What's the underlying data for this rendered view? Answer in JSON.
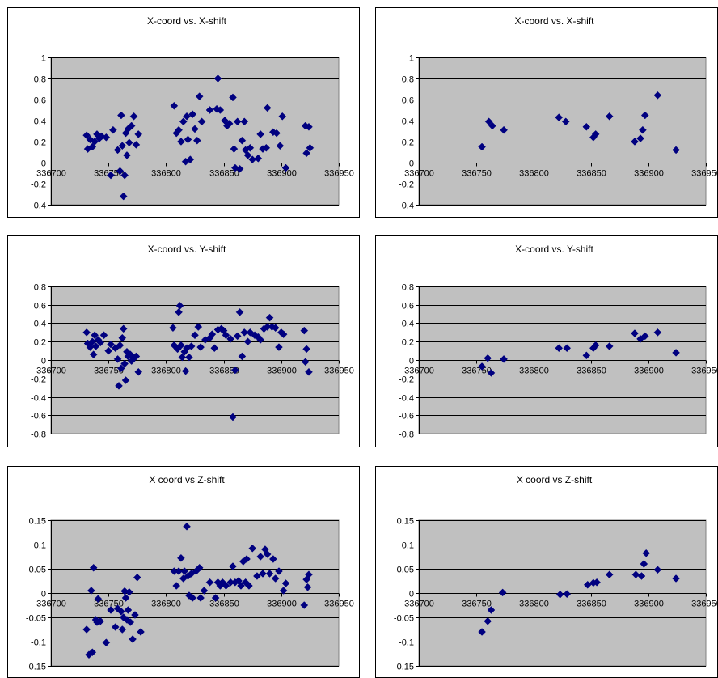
{
  "chart_data": [
    {
      "type": "scatter",
      "title": "X-coord vs. X-shift",
      "xlim": [
        336700,
        336950
      ],
      "ylim": [
        -0.4,
        1
      ],
      "xticks": [
        336700,
        336750,
        336800,
        336850,
        336900,
        336950
      ],
      "yticks": [
        -0.4,
        -0.2,
        0,
        0.2,
        0.4,
        0.6,
        0.8,
        1
      ],
      "xtick_labels": [
        "336700",
        "336750",
        "336800",
        "336850",
        "336900",
        "336950"
      ],
      "ytick_labels": [
        "-0.4",
        "-0.2",
        "0",
        "0.2",
        "0.4",
        "0.6",
        "0.8",
        "1"
      ],
      "grid": true,
      "marker_color": "#000080",
      "plot_bg": "#c0c0c0",
      "points": [
        [
          336731,
          0.26
        ],
        [
          336732,
          0.13
        ],
        [
          336734,
          0.22
        ],
        [
          336736,
          0.15
        ],
        [
          336738,
          0.2
        ],
        [
          336740,
          0.27
        ],
        [
          336742,
          0.23
        ],
        [
          336744,
          0.25
        ],
        [
          336748,
          0.24
        ],
        [
          336752,
          -0.12
        ],
        [
          336754,
          0.31
        ],
        [
          336758,
          0.12
        ],
        [
          336760,
          -0.08
        ],
        [
          336761,
          0.45
        ],
        [
          336762,
          0.16
        ],
        [
          336763,
          -0.32
        ],
        [
          336764,
          -0.12
        ],
        [
          336765,
          0.28
        ],
        [
          336766,
          0.07
        ],
        [
          336767,
          0.32
        ],
        [
          336768,
          0.19
        ],
        [
          336770,
          0.35
        ],
        [
          336772,
          0.44
        ],
        [
          336774,
          0.17
        ],
        [
          336776,
          0.27
        ],
        [
          336807,
          0.54
        ],
        [
          336809,
          0.28
        ],
        [
          336811,
          0.31
        ],
        [
          336813,
          0.2
        ],
        [
          336815,
          0.39
        ],
        [
          336817,
          0.01
        ],
        [
          336818,
          0.44
        ],
        [
          336819,
          0.22
        ],
        [
          336821,
          0.03
        ],
        [
          336823,
          0.46
        ],
        [
          336825,
          0.32
        ],
        [
          336827,
          0.21
        ],
        [
          336829,
          0.63
        ],
        [
          336831,
          0.39
        ],
        [
          336838,
          0.5
        ],
        [
          336844,
          0.51
        ],
        [
          336845,
          0.8
        ],
        [
          336847,
          0.5
        ],
        [
          336851,
          0.4
        ],
        [
          336853,
          0.35
        ],
        [
          336855,
          0.37
        ],
        [
          336858,
          0.62
        ],
        [
          336859,
          0.13
        ],
        [
          336860,
          -0.05
        ],
        [
          336862,
          0.39
        ],
        [
          336864,
          -0.06
        ],
        [
          336866,
          0.21
        ],
        [
          336868,
          0.39
        ],
        [
          336869,
          0.12
        ],
        [
          336871,
          0.07
        ],
        [
          336873,
          0.14
        ],
        [
          336875,
          0.03
        ],
        [
          336880,
          0.04
        ],
        [
          336882,
          0.27
        ],
        [
          336884,
          0.13
        ],
        [
          336887,
          0.14
        ],
        [
          336888,
          0.52
        ],
        [
          336893,
          0.29
        ],
        [
          336896,
          0.28
        ],
        [
          336899,
          0.16
        ],
        [
          336901,
          0.44
        ],
        [
          336904,
          -0.05
        ],
        [
          336921,
          0.35
        ],
        [
          336922,
          0.09
        ],
        [
          336924,
          0.34
        ],
        [
          336925,
          0.14
        ]
      ]
    },
    {
      "type": "scatter",
      "title": "X-coord vs. X-shift",
      "xlim": [
        336700,
        336950
      ],
      "ylim": [
        -0.4,
        1
      ],
      "xticks": [
        336700,
        336750,
        336800,
        336850,
        336900,
        336950
      ],
      "yticks": [
        -0.4,
        -0.2,
        0,
        0.2,
        0.4,
        0.6,
        0.8,
        1
      ],
      "xtick_labels": [
        "336700",
        "336750",
        "336800",
        "336850",
        "336900",
        "336950"
      ],
      "ytick_labels": [
        "-0.4",
        "-0.2",
        "0",
        "0.2",
        "0.4",
        "0.6",
        "0.8",
        "1"
      ],
      "grid": true,
      "marker_color": "#000080",
      "plot_bg": "#c0c0c0",
      "points": [
        [
          336755,
          0.15
        ],
        [
          336761,
          0.39
        ],
        [
          336764,
          0.35
        ],
        [
          336774,
          0.31
        ],
        [
          336822,
          0.43
        ],
        [
          336828,
          0.39
        ],
        [
          336846,
          0.34
        ],
        [
          336852,
          0.24
        ],
        [
          336854,
          0.27
        ],
        [
          336866,
          0.44
        ],
        [
          336888,
          0.2
        ],
        [
          336893,
          0.23
        ],
        [
          336895,
          0.31
        ],
        [
          336897,
          0.45
        ],
        [
          336908,
          0.64
        ],
        [
          336924,
          0.12
        ]
      ]
    },
    {
      "type": "scatter",
      "title": "X-coord vs. Y-shift",
      "xlim": [
        336700,
        336950
      ],
      "ylim": [
        -0.8,
        0.8
      ],
      "xticks": [
        336700,
        336750,
        336800,
        336850,
        336900,
        336950
      ],
      "yticks": [
        -0.8,
        -0.6,
        -0.4,
        -0.2,
        0,
        0.2,
        0.4,
        0.6,
        0.8
      ],
      "xtick_labels": [
        "336700",
        "336750",
        "336800",
        "336850",
        "336900",
        "336950"
      ],
      "ytick_labels": [
        "-0.8",
        "-0.6",
        "-0.4",
        "-0.2",
        "0",
        "0.2",
        "0.4",
        "0.6",
        "0.8"
      ],
      "grid": true,
      "marker_color": "#000080",
      "plot_bg": "#c0c0c0",
      "points": [
        [
          336731,
          0.3
        ],
        [
          336732,
          0.18
        ],
        [
          336734,
          0.14
        ],
        [
          336736,
          0.2
        ],
        [
          336737,
          0.06
        ],
        [
          336738,
          0.27
        ],
        [
          336739,
          0.15
        ],
        [
          336741,
          0.22
        ],
        [
          336743,
          0.19
        ],
        [
          336746,
          0.27
        ],
        [
          336750,
          0.1
        ],
        [
          336752,
          0.17
        ],
        [
          336756,
          0.13
        ],
        [
          336758,
          0.01
        ],
        [
          336759,
          -0.28
        ],
        [
          336760,
          0.16
        ],
        [
          336761,
          -0.09
        ],
        [
          336762,
          0.24
        ],
        [
          336763,
          0.34
        ],
        [
          336764,
          -0.04
        ],
        [
          336765,
          -0.22
        ],
        [
          336766,
          0.09
        ],
        [
          336767,
          0.04
        ],
        [
          336769,
          0.06
        ],
        [
          336770,
          -0.01
        ],
        [
          336772,
          0.02
        ],
        [
          336774,
          0.04
        ],
        [
          336776,
          -0.13
        ],
        [
          336806,
          0.35
        ],
        [
          336807,
          0.16
        ],
        [
          336810,
          0.12
        ],
        [
          336811,
          0.52
        ],
        [
          336812,
          0.59
        ],
        [
          336813,
          0.16
        ],
        [
          336814,
          0.03
        ],
        [
          336816,
          0.09
        ],
        [
          336817,
          -0.12
        ],
        [
          336818,
          0.13
        ],
        [
          336820,
          0.03
        ],
        [
          336822,
          0.15
        ],
        [
          336825,
          0.27
        ],
        [
          336828,
          0.36
        ],
        [
          336830,
          0.14
        ],
        [
          336834,
          0.22
        ],
        [
          336838,
          0.24
        ],
        [
          336840,
          0.28
        ],
        [
          336842,
          0.13
        ],
        [
          336845,
          0.33
        ],
        [
          336848,
          0.34
        ],
        [
          336850,
          0.32
        ],
        [
          336852,
          0.27
        ],
        [
          336856,
          0.23
        ],
        [
          336858,
          -0.62
        ],
        [
          336860,
          -0.11
        ],
        [
          336862,
          0.26
        ],
        [
          336864,
          0.52
        ],
        [
          336866,
          0.04
        ],
        [
          336868,
          0.3
        ],
        [
          336871,
          0.2
        ],
        [
          336873,
          0.3
        ],
        [
          336877,
          0.27
        ],
        [
          336880,
          0.25
        ],
        [
          336882,
          0.22
        ],
        [
          336885,
          0.34
        ],
        [
          336888,
          0.36
        ],
        [
          336890,
          0.46
        ],
        [
          336892,
          0.36
        ],
        [
          336895,
          0.35
        ],
        [
          336898,
          0.14
        ],
        [
          336900,
          0.3
        ],
        [
          336902,
          0.28
        ],
        [
          336920,
          0.32
        ],
        [
          336921,
          -0.02
        ],
        [
          336922,
          0.12
        ],
        [
          336924,
          -0.13
        ]
      ]
    },
    {
      "type": "scatter",
      "title": "X-coord vs. Y-shift",
      "xlim": [
        336700,
        336950
      ],
      "ylim": [
        -0.8,
        0.8
      ],
      "xticks": [
        336700,
        336750,
        336800,
        336850,
        336900,
        336950
      ],
      "yticks": [
        -0.8,
        -0.6,
        -0.4,
        -0.2,
        0,
        0.2,
        0.4,
        0.6,
        0.8
      ],
      "xtick_labels": [
        "336700",
        "336750",
        "336800",
        "336850",
        "336900",
        "336950"
      ],
      "ytick_labels": [
        "-0.8",
        "-0.6",
        "-0.4",
        "-0.2",
        "0",
        "0.2",
        "0.4",
        "0.6",
        "0.8"
      ],
      "grid": true,
      "marker_color": "#000080",
      "plot_bg": "#c0c0c0",
      "points": [
        [
          336755,
          -0.07
        ],
        [
          336760,
          0.02
        ],
        [
          336763,
          -0.14
        ],
        [
          336774,
          0.01
        ],
        [
          336822,
          0.13
        ],
        [
          336829,
          0.13
        ],
        [
          336846,
          0.05
        ],
        [
          336852,
          0.13
        ],
        [
          336854,
          0.16
        ],
        [
          336866,
          0.15
        ],
        [
          336888,
          0.29
        ],
        [
          336893,
          0.23
        ],
        [
          336897,
          0.26
        ],
        [
          336908,
          0.3
        ],
        [
          336924,
          0.08
        ]
      ]
    },
    {
      "type": "scatter",
      "title": "X coord vs Z-shift",
      "xlim": [
        336700,
        336950
      ],
      "ylim": [
        -0.15,
        0.15
      ],
      "xticks": [
        336700,
        336750,
        336800,
        336850,
        336900,
        336950
      ],
      "yticks": [
        -0.15,
        -0.1,
        -0.05,
        0,
        0.05,
        0.1,
        0.15
      ],
      "xtick_labels": [
        "336700",
        "336750",
        "336800",
        "336850",
        "336900",
        "336950"
      ],
      "ytick_labels": [
        "-0.15",
        "-0.1",
        "-0.05",
        "0",
        "0.05",
        "0.1",
        "0.15"
      ],
      "grid": true,
      "marker_color": "#000080",
      "plot_bg": "#c0c0c0",
      "points": [
        [
          336731,
          -0.075
        ],
        [
          336733,
          -0.127
        ],
        [
          336735,
          0.005
        ],
        [
          336736,
          -0.122
        ],
        [
          336737,
          0.052
        ],
        [
          336739,
          -0.055
        ],
        [
          336740,
          -0.06
        ],
        [
          336741,
          -0.012
        ],
        [
          336743,
          -0.058
        ],
        [
          336748,
          -0.102
        ],
        [
          336752,
          -0.035
        ],
        [
          336756,
          -0.07
        ],
        [
          336758,
          -0.032
        ],
        [
          336761,
          -0.038
        ],
        [
          336762,
          -0.075
        ],
        [
          336763,
          -0.05
        ],
        [
          336764,
          0.004
        ],
        [
          336765,
          -0.01
        ],
        [
          336766,
          -0.055
        ],
        [
          336767,
          -0.035
        ],
        [
          336768,
          0.002
        ],
        [
          336769,
          -0.06
        ],
        [
          336771,
          -0.095
        ],
        [
          336773,
          -0.045
        ],
        [
          336775,
          0.032
        ],
        [
          336778,
          -0.08
        ],
        [
          336807,
          0.045
        ],
        [
          336809,
          0.015
        ],
        [
          336811,
          0.045
        ],
        [
          336813,
          0.072
        ],
        [
          336815,
          0.03
        ],
        [
          336816,
          0.045
        ],
        [
          336818,
          0.137
        ],
        [
          336819,
          0.035
        ],
        [
          336820,
          -0.005
        ],
        [
          336822,
          0.04
        ],
        [
          336823,
          -0.01
        ],
        [
          336826,
          0.045
        ],
        [
          336829,
          0.052
        ],
        [
          336830,
          -0.01
        ],
        [
          336833,
          0.005
        ],
        [
          336838,
          0.022
        ],
        [
          336843,
          -0.01
        ],
        [
          336845,
          0.022
        ],
        [
          336847,
          0.015
        ],
        [
          336849,
          0.022
        ],
        [
          336852,
          0.015
        ],
        [
          336856,
          0.022
        ],
        [
          336858,
          0.055
        ],
        [
          336860,
          0.022
        ],
        [
          336863,
          0.025
        ],
        [
          336865,
          0.015
        ],
        [
          336867,
          0.065
        ],
        [
          336869,
          0.022
        ],
        [
          336870,
          0.07
        ],
        [
          336872,
          0.015
        ],
        [
          336875,
          0.092
        ],
        [
          336879,
          0.035
        ],
        [
          336882,
          0.075
        ],
        [
          336884,
          0.04
        ],
        [
          336886,
          0.09
        ],
        [
          336888,
          0.08
        ],
        [
          336890,
          0.04
        ],
        [
          336893,
          0.07
        ],
        [
          336895,
          0.03
        ],
        [
          336898,
          0.045
        ],
        [
          336902,
          0.005
        ],
        [
          336904,
          0.02
        ],
        [
          336920,
          -0.025
        ],
        [
          336922,
          0.028
        ],
        [
          336923,
          0.012
        ],
        [
          336924,
          0.038
        ]
      ]
    },
    {
      "type": "scatter",
      "title": "X coord vs Z-shift",
      "xlim": [
        336700,
        336950
      ],
      "ylim": [
        -0.15,
        0.15
      ],
      "xticks": [
        336700,
        336750,
        336800,
        336850,
        336900,
        336950
      ],
      "yticks": [
        -0.15,
        -0.1,
        -0.05,
        0,
        0.05,
        0.1,
        0.15
      ],
      "xtick_labels": [
        "336700",
        "336750",
        "336800",
        "336850",
        "336900",
        "336950"
      ],
      "ytick_labels": [
        "-0.15",
        "-0.1",
        "-0.05",
        "0",
        "0.05",
        "0.1",
        "0.15"
      ],
      "grid": true,
      "marker_color": "#000080",
      "plot_bg": "#c0c0c0",
      "points": [
        [
          336755,
          -0.08
        ],
        [
          336760,
          -0.058
        ],
        [
          336763,
          -0.035
        ],
        [
          336773,
          0.001
        ],
        [
          336823,
          -0.003
        ],
        [
          336829,
          -0.002
        ],
        [
          336847,
          0.017
        ],
        [
          336852,
          0.021
        ],
        [
          336855,
          0.022
        ],
        [
          336866,
          0.038
        ],
        [
          336889,
          0.038
        ],
        [
          336894,
          0.035
        ],
        [
          336896,
          0.06
        ],
        [
          336898,
          0.082
        ],
        [
          336908,
          0.048
        ],
        [
          336924,
          0.03
        ]
      ]
    }
  ]
}
